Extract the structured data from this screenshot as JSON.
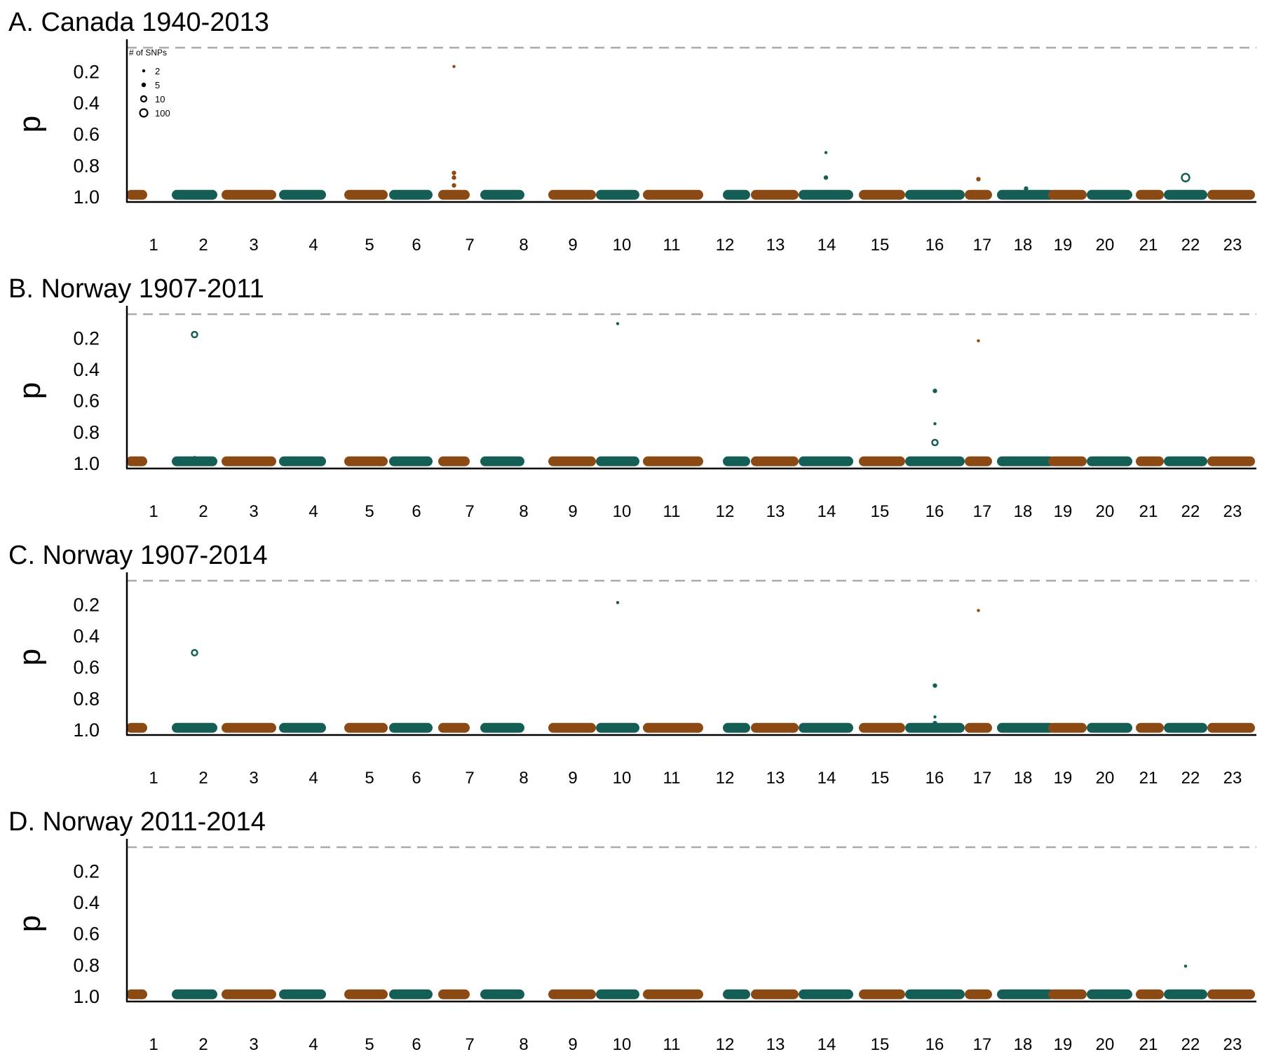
{
  "colors": {
    "odd": "#8b4a14",
    "even": "#155e56",
    "threshold": "#aaaaaa",
    "axis": "#000000"
  },
  "legend": {
    "title": "# of SNPs",
    "items": [
      {
        "label": "2",
        "snps": 2
      },
      {
        "label": "5",
        "snps": 5
      },
      {
        "label": "10",
        "snps": 10
      },
      {
        "label": "100",
        "snps": 100
      }
    ]
  },
  "chart_data": [
    {
      "type": "scatter",
      "title": "A. Canada 1940-2013",
      "ylabel": "p",
      "yticks": [
        "0.2",
        "0.4",
        "0.6",
        "0.8",
        "1.0"
      ],
      "ylim": [
        0.03,
        1.0
      ],
      "yreverse": true,
      "threshold": 0.05,
      "xticks": [
        "1",
        "2",
        "3",
        "4",
        "5",
        "6",
        "7",
        "8",
        "9",
        "10",
        "11",
        "12",
        "13",
        "14",
        "15",
        "16",
        "17",
        "18",
        "19",
        "20",
        "21",
        "22",
        "23"
      ],
      "show_legend": true,
      "baseline_p": 0.99,
      "outliers": [
        {
          "chrom": 7,
          "p": 0.17,
          "snps": 2
        },
        {
          "chrom": 7,
          "p": 0.85,
          "snps": 5
        },
        {
          "chrom": 7,
          "p": 0.88,
          "snps": 5
        },
        {
          "chrom": 7,
          "p": 0.93,
          "snps": 5
        },
        {
          "chrom": 14,
          "p": 0.72,
          "snps": 2
        },
        {
          "chrom": 14,
          "p": 0.88,
          "snps": 5
        },
        {
          "chrom": 17,
          "p": 0.89,
          "snps": 5
        },
        {
          "chrom": 18,
          "p": 0.95,
          "snps": 5
        },
        {
          "chrom": 22,
          "p": 0.88,
          "snps": 100
        }
      ]
    },
    {
      "type": "scatter",
      "title": "B. Norway 1907-2011",
      "ylabel": "p",
      "yticks": [
        "0.2",
        "0.4",
        "0.6",
        "0.8",
        "1.0"
      ],
      "ylim": [
        0.03,
        1.0
      ],
      "yreverse": true,
      "threshold": 0.05,
      "xticks": [
        "1",
        "2",
        "3",
        "4",
        "5",
        "6",
        "7",
        "8",
        "9",
        "10",
        "11",
        "12",
        "13",
        "14",
        "15",
        "16",
        "17",
        "18",
        "19",
        "20",
        "21",
        "22",
        "23"
      ],
      "show_legend": false,
      "baseline_p": 0.99,
      "outliers": [
        {
          "chrom": 2,
          "p": 0.18,
          "snps": 10
        },
        {
          "chrom": 2,
          "p": 0.97,
          "snps": 5
        },
        {
          "chrom": 10,
          "p": 0.11,
          "snps": 2
        },
        {
          "chrom": 16,
          "p": 0.54,
          "snps": 5
        },
        {
          "chrom": 16,
          "p": 0.75,
          "snps": 2
        },
        {
          "chrom": 16,
          "p": 0.87,
          "snps": 10
        },
        {
          "chrom": 17,
          "p": 0.22,
          "snps": 2
        }
      ]
    },
    {
      "type": "scatter",
      "title": "C. Norway 1907-2014",
      "ylabel": "p",
      "yticks": [
        "0.2",
        "0.4",
        "0.6",
        "0.8",
        "1.0"
      ],
      "ylim": [
        0.03,
        1.0
      ],
      "yreverse": true,
      "threshold": 0.05,
      "xticks": [
        "1",
        "2",
        "3",
        "4",
        "5",
        "6",
        "7",
        "8",
        "9",
        "10",
        "11",
        "12",
        "13",
        "14",
        "15",
        "16",
        "17",
        "18",
        "19",
        "20",
        "21",
        "22",
        "23"
      ],
      "show_legend": false,
      "baseline_p": 0.99,
      "outliers": [
        {
          "chrom": 2,
          "p": 0.51,
          "snps": 10
        },
        {
          "chrom": 10,
          "p": 0.19,
          "snps": 2
        },
        {
          "chrom": 16,
          "p": 0.72,
          "snps": 5
        },
        {
          "chrom": 16,
          "p": 0.92,
          "snps": 2
        },
        {
          "chrom": 16,
          "p": 0.96,
          "snps": 5
        },
        {
          "chrom": 17,
          "p": 0.24,
          "snps": 2
        }
      ]
    },
    {
      "type": "scatter",
      "title": "D. Norway 2011-2014",
      "ylabel": "p",
      "yticks": [
        "0.2",
        "0.4",
        "0.6",
        "0.8",
        "1.0"
      ],
      "ylim": [
        0.03,
        1.0
      ],
      "yreverse": true,
      "threshold": 0.05,
      "xticks": [
        "1",
        "2",
        "3",
        "4",
        "5",
        "6",
        "7",
        "8",
        "9",
        "10",
        "11",
        "12",
        "13",
        "14",
        "15",
        "16",
        "17",
        "18",
        "19",
        "20",
        "21",
        "22",
        "23"
      ],
      "show_legend": false,
      "baseline_p": 0.99,
      "outliers": [
        {
          "chrom": 22,
          "p": 0.81,
          "snps": 2
        },
        {
          "chrom": 22,
          "p": 0.97,
          "snps": 2
        }
      ]
    }
  ]
}
